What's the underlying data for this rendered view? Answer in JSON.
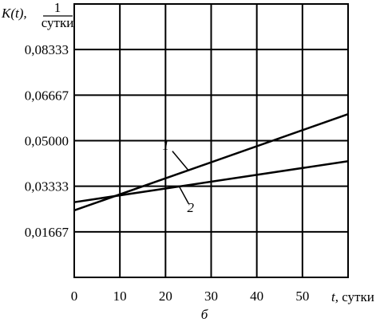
{
  "chart_data": {
    "type": "line",
    "ylabel": {
      "main": "K(t),",
      "fraction_numerator": "1",
      "fraction_denominator": "сутки"
    },
    "xlabel": {
      "italic": "t",
      "unit": ", сутки"
    },
    "caption": "б",
    "xlim": [
      0,
      60
    ],
    "ylim": [
      0,
      0.1
    ],
    "x_ticks": [
      0,
      10,
      20,
      30,
      40,
      50
    ],
    "x_tick_labels": [
      "0",
      "10",
      "20",
      "30",
      "40",
      "50"
    ],
    "y_ticks": [
      0.01667,
      0.03333,
      0.05,
      0.06667,
      0.08333
    ],
    "y_tick_labels": [
      "0,01667",
      "0,03333",
      "0,05000",
      "0,06667",
      "0,08333"
    ],
    "grid": true,
    "series": [
      {
        "label": "1",
        "x": [
          0,
          60
        ],
        "y": [
          0.0245,
          0.0597
        ],
        "label_at_x": 25
      },
      {
        "label": "2",
        "x": [
          0,
          60
        ],
        "y": [
          0.0275,
          0.0425
        ],
        "label_at_x": 23
      }
    ]
  }
}
